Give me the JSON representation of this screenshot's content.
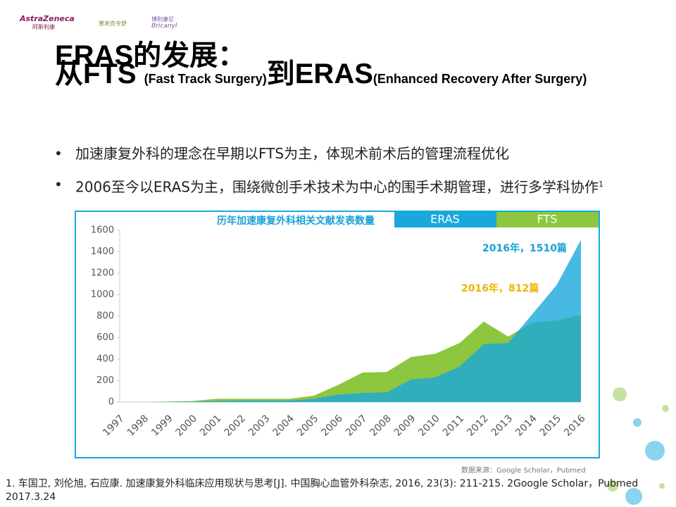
{
  "logos": [
    "AstraZeneca",
    "阿斯利康",
    "普米克令舒",
    "博利康尼",
    "Bricanyl"
  ],
  "header": {
    "title_line1": "ERAS的发展：",
    "title_big1": "从FTS ",
    "title_small1": "(Fast Track Surgery)",
    "title_big2": "到ERAS",
    "title_small2": "(Enhanced Recovery After Surgery)"
  },
  "bullets": [
    "加速康复外科的理念在早期以FTS为主，体现术前术后的管理流程优化",
    "2006至今以ERAS为主，围绕微创手术技术为中心的围手术期管理，进行多学科协作"
  ],
  "bullet_superscript": "1",
  "chart_data": {
    "type": "area",
    "title": "历年加速康复外科相关文献发表数量",
    "categories": [
      "1997",
      "1998",
      "1999",
      "2000",
      "2001",
      "2002",
      "2003",
      "2004",
      "2005",
      "2006",
      "2007",
      "2008",
      "2009",
      "2010",
      "2011",
      "2012",
      "2013",
      "2014",
      "2015",
      "2016"
    ],
    "series": [
      {
        "name": "FTS",
        "color": "#8dc63f",
        "values": [
          0,
          0,
          5,
          10,
          30,
          30,
          30,
          30,
          60,
          160,
          275,
          280,
          420,
          450,
          550,
          750,
          610,
          740,
          760,
          812
        ]
      },
      {
        "name": "ERAS",
        "color": "#1aa8dc",
        "values": [
          0,
          0,
          2,
          5,
          10,
          15,
          15,
          15,
          30,
          70,
          85,
          90,
          210,
          230,
          330,
          540,
          550,
          820,
          1090,
          1510
        ]
      }
    ],
    "ylim": [
      0,
      1600
    ],
    "yticks": [
      0,
      200,
      400,
      600,
      800,
      1000,
      1200,
      1400,
      1600
    ],
    "annotations": [
      {
        "text": "2016年，1510篇",
        "color": "#1aa0d8"
      },
      {
        "text": "2016年，812篇",
        "color": "#f0b400"
      }
    ],
    "source": "数据来源：Google Scholar，Pubmed"
  },
  "footnote": "1. 车国卫, 刘伦旭, 石应康. 加速康复外科临床应用现状与思考[J]. 中国胸心血管外科杂志, 2016, 23(3): 211-215. 2Google Scholar，Pubmed 2017.3.24"
}
